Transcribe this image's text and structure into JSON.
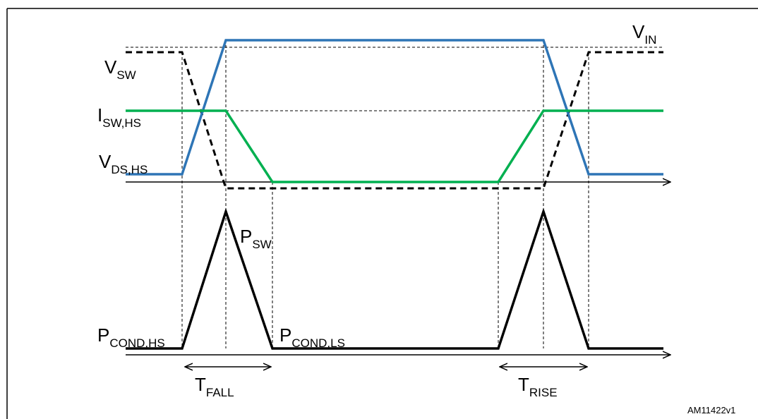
{
  "figure": {
    "heading": "",
    "reference": "AM11422v1"
  },
  "labels": {
    "v_in": {
      "main": "V",
      "sub": "IN"
    },
    "v_sw": {
      "main": "V",
      "sub": "SW"
    },
    "i_sw_hs": {
      "main": "I",
      "sub": "SW,HS"
    },
    "v_ds_hs": {
      "main": "V",
      "sub": "DS,HS"
    },
    "p_sw": {
      "main": "P",
      "sub": "SW"
    },
    "p_cond_hs": {
      "main": "P",
      "sub": "COND,HS"
    },
    "p_cond_ls": {
      "main": "P",
      "sub": "COND,LS"
    },
    "t_fall": {
      "main": "T",
      "sub": "FALL"
    },
    "t_rise": {
      "main": "T",
      "sub": "RISE"
    }
  },
  "colors": {
    "v_ds_hs": "#2E75B6",
    "i_sw_hs": "#00B050",
    "v_sw": "#000000",
    "p_sw": "#000000"
  }
}
